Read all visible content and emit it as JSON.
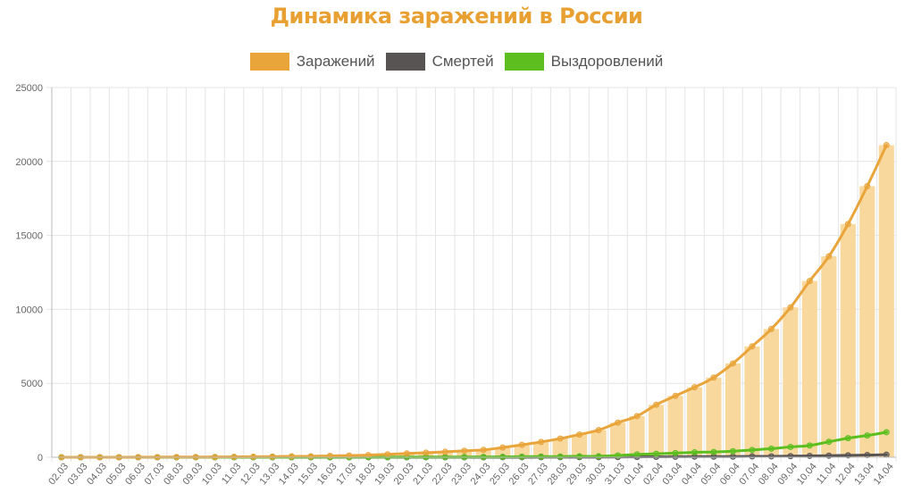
{
  "colors": {
    "title": "#E8A033",
    "infected_line": "#E9A43A",
    "infected_bar": "#F9D89E",
    "deaths": "#595454",
    "recovered": "#5CBF1F",
    "grid": "#E4E4E4"
  },
  "chart_data": {
    "type": "bar+line",
    "title": "Динамика заражений в России",
    "legend_position": "top-center",
    "grid": true,
    "ylim": [
      0,
      25000
    ],
    "yticks": [
      "0",
      "5000",
      "10000",
      "15000",
      "20000",
      "25000"
    ],
    "categories": [
      "02.03",
      "03.03",
      "04.03",
      "05.03",
      "06.03",
      "07.03",
      "08.03",
      "09.03",
      "10.03",
      "11.03",
      "12.03",
      "13.03",
      "14.03",
      "15.03",
      "16.03",
      "17.03",
      "18.03",
      "19.03",
      "20.03",
      "21.03",
      "22.03",
      "23.03",
      "24.03",
      "25.03",
      "26.03",
      "27.03",
      "28.03",
      "29.03",
      "30.03",
      "31.03",
      "01.04",
      "02.04",
      "03.04",
      "04.04",
      "05.04",
      "06.04",
      "07.04",
      "08.04",
      "09.04",
      "10.04",
      "11.04",
      "12.04",
      "13.04",
      "14.04"
    ],
    "series": [
      {
        "name": "Заражений",
        "kind": "bar+line",
        "values": [
          3,
          3,
          3,
          3,
          4,
          10,
          17,
          17,
          20,
          28,
          34,
          45,
          59,
          63,
          93,
          114,
          147,
          199,
          253,
          306,
          367,
          438,
          495,
          658,
          840,
          1036,
          1264,
          1534,
          1836,
          2337,
          2777,
          3548,
          4149,
          4731,
          5389,
          6343,
          7497,
          8672,
          10131,
          11917,
          13584,
          15770,
          18328,
          21102
        ]
      },
      {
        "name": "Смертей",
        "kind": "line",
        "values": [
          0,
          0,
          0,
          0,
          0,
          0,
          0,
          0,
          0,
          0,
          0,
          0,
          0,
          0,
          0,
          0,
          0,
          1,
          1,
          1,
          1,
          1,
          1,
          3,
          3,
          4,
          4,
          8,
          9,
          17,
          24,
          30,
          34,
          43,
          45,
          47,
          58,
          63,
          76,
          94,
          106,
          130,
          148,
          170
        ]
      },
      {
        "name": "Выздоровлений",
        "kind": "line",
        "values": [
          0,
          0,
          0,
          0,
          0,
          0,
          0,
          0,
          0,
          0,
          3,
          3,
          3,
          5,
          5,
          5,
          8,
          9,
          14,
          16,
          16,
          17,
          22,
          29,
          38,
          45,
          49,
          64,
          66,
          121,
          190,
          235,
          281,
          333,
          355,
          406,
          494,
          580,
          698,
          795,
          1045,
          1291,
          1470,
          1694
        ]
      }
    ]
  }
}
